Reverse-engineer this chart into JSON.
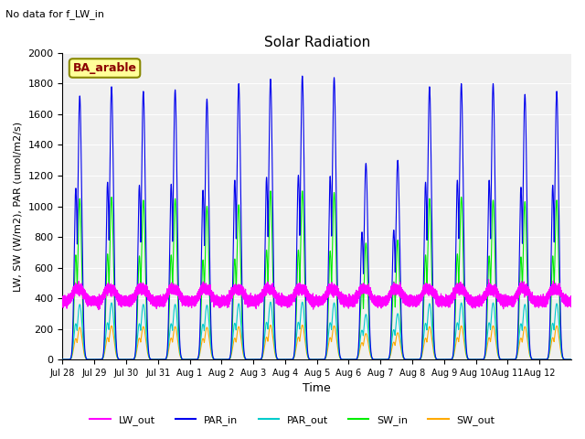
{
  "title": "Solar Radiation",
  "suptitle": "No data for f_LW_in",
  "xlabel": "Time",
  "ylabel": "LW, SW (W/m2), PAR (umol/m2/s)",
  "legend_label": "BA_arable",
  "ylim": [
    0,
    2000
  ],
  "num_days": 16,
  "background_color": "#dcdcdc",
  "plot_bg": "#f0f0f0",
  "colors": {
    "LW_out": "#ff00ff",
    "PAR_in": "#0000ee",
    "PAR_out": "#00cccc",
    "SW_in": "#00ee00",
    "SW_out": "#ffaa00"
  },
  "tick_labels": [
    "Jul 28",
    "Jul 29",
    "Jul 30",
    "Jul 31",
    "Aug 1",
    "Aug 2",
    "Aug 3",
    "Aug 4",
    "Aug 5",
    "Aug 6",
    "Aug 7",
    "Aug 8",
    "Aug 9",
    "Aug 10",
    "Aug 11",
    "Aug 12"
  ]
}
